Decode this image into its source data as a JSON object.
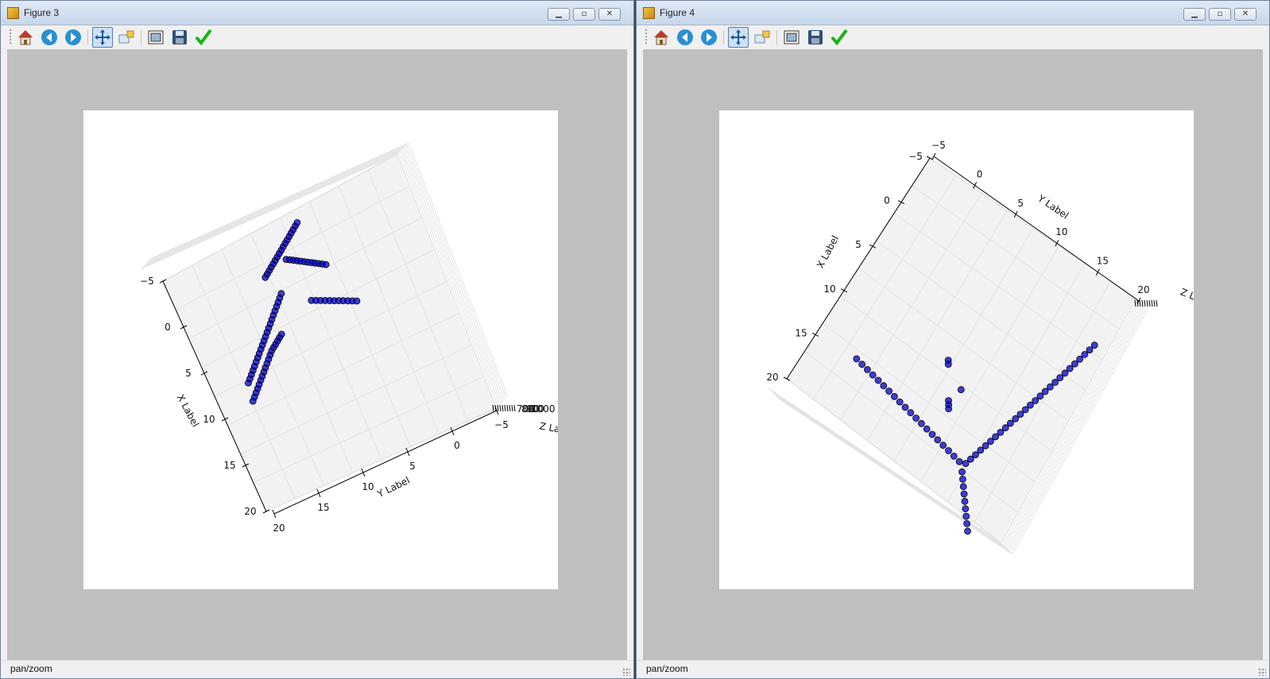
{
  "windows": [
    {
      "title": "Figure 3",
      "status": "pan/zoom",
      "toolbar": [
        "home-icon",
        "back-icon",
        "forward-icon",
        "pan-icon",
        "zoom-icon",
        "subplots-icon",
        "save-icon",
        "check-icon"
      ],
      "chart_data": {
        "type": "scatter",
        "title": "",
        "xlabel": "X Label",
        "ylabel": "Y Label",
        "zlabel": "Z Label",
        "xticks": [
          "−5",
          "0",
          "5",
          "10",
          "15",
          "20"
        ],
        "yticks": [
          "20",
          "15",
          "10",
          "5",
          "0",
          "−5"
        ],
        "zticks": [
          "700",
          "800",
          "900",
          "1000"
        ],
        "zticks_note": "",
        "marker_color": "#0000cc",
        "series": [
          {
            "points": [
              [
                -1.8,
                9.6
              ],
              [
                -1.5,
                9.3
              ],
              [
                -1.2,
                9.0
              ],
              [
                -0.9,
                8.7
              ],
              [
                -0.6,
                8.4
              ],
              [
                -0.3,
                8.1
              ],
              [
                0.0,
                7.8
              ],
              [
                0.3,
                7.5
              ],
              [
                0.6,
                7.2
              ],
              [
                0.9,
                6.9
              ],
              [
                1.2,
                6.6
              ],
              [
                1.5,
                6.3
              ],
              [
                1.8,
                6.0
              ],
              [
                2.1,
                5.8
              ],
              [
                2.4,
                5.6
              ],
              [
                2.7,
                5.4
              ],
              [
                3.0,
                5.2
              ],
              [
                3.3,
                5.0
              ],
              [
                -1.5,
                7.8
              ],
              [
                -1.2,
                7.5
              ],
              [
                -0.9,
                7.2
              ],
              [
                -0.6,
                6.9
              ],
              [
                -0.3,
                6.6
              ],
              [
                0.0,
                6.3
              ],
              [
                0.3,
                6.0
              ],
              [
                0.6,
                5.7
              ],
              [
                0.9,
                5.4
              ],
              [
                1.2,
                5.1
              ],
              [
                1.5,
                4.8
              ],
              [
                1.8,
                4.5
              ],
              [
                2.1,
                4.2
              ],
              [
                2.4,
                3.9
              ],
              [
                2.7,
                3.6
              ],
              [
                3.0,
                3.3
              ],
              [
                3.3,
                3.0
              ],
              [
                3.6,
                2.7
              ],
              [
                3.9,
                2.4
              ],
              [
                4.2,
                2.1
              ],
              [
                4.5,
                1.8
              ],
              [
                4.8,
                1.5
              ],
              [
                4.0,
                -0.6
              ],
              [
                4.3,
                -0.8
              ],
              [
                4.6,
                -1.0
              ],
              [
                4.9,
                -1.2
              ],
              [
                5.2,
                -1.4
              ],
              [
                5.5,
                -1.6
              ],
              [
                5.8,
                -1.8
              ],
              [
                6.1,
                -2.0
              ],
              [
                6.4,
                -2.2
              ],
              [
                6.7,
                -2.4
              ],
              [
                7.0,
                -2.6
              ],
              [
                7.3,
                -2.8
              ],
              [
                7.6,
                -3.0
              ],
              [
                7.9,
                -3.2
              ],
              [
                8.2,
                -3.4
              ],
              [
                8.5,
                -3.6
              ],
              [
                8.8,
                -3.8
              ],
              [
                6.5,
                -1.2
              ],
              [
                6.8,
                -1.0
              ],
              [
                7.1,
                -0.8
              ],
              [
                7.4,
                -0.6
              ],
              [
                7.7,
                -0.4
              ],
              [
                8.0,
                -0.2
              ],
              [
                8.3,
                0.0
              ],
              [
                8.6,
                0.2
              ],
              [
                8.9,
                0.4
              ],
              [
                9.2,
                0.6
              ],
              [
                9.5,
                0.8
              ],
              [
                9.8,
                1.0
              ],
              [
                7.2,
                3.4
              ],
              [
                7.6,
                3.6
              ],
              [
                8.0,
                3.8
              ],
              [
                8.4,
                4.0
              ],
              [
                8.8,
                4.2
              ],
              [
                9.2,
                4.4
              ],
              [
                9.6,
                4.6
              ],
              [
                10.0,
                4.8
              ],
              [
                10.4,
                5.0
              ],
              [
                10.8,
                5.2
              ],
              [
                11.2,
                5.4
              ]
            ]
          }
        ]
      }
    },
    {
      "title": "Figure 4",
      "status": "pan/zoom",
      "toolbar": [
        "home-icon",
        "back-icon",
        "forward-icon",
        "pan-icon",
        "zoom-icon",
        "subplots-icon",
        "save-icon",
        "check-icon"
      ],
      "chart_data": {
        "type": "scatter",
        "title": "",
        "xlabel": "X Label",
        "ylabel": "Y Label",
        "zlabel": "Z Label",
        "xticks": [
          "−5",
          "0",
          "5",
          "10",
          "15",
          "20"
        ],
        "yticks": [
          "−5",
          "0",
          "5",
          "10",
          "15",
          "20"
        ],
        "zticks_note": "",
        "marker_color": "#0000cc",
        "series": [
          {
            "points": [
              [
                14.5,
                -0.5
              ],
              [
                14.6,
                0.2
              ],
              [
                14.7,
                0.9
              ],
              [
                14.8,
                1.6
              ],
              [
                14.9,
                2.3
              ],
              [
                15.0,
                3.0
              ],
              [
                15.1,
                3.7
              ],
              [
                15.2,
                4.4
              ],
              [
                15.3,
                5.1
              ],
              [
                15.4,
                5.8
              ],
              [
                15.5,
                6.5
              ],
              [
                15.6,
                7.2
              ],
              [
                15.7,
                7.9
              ],
              [
                15.8,
                8.6
              ],
              [
                15.9,
                9.3
              ],
              [
                16.0,
                10.0
              ],
              [
                16.1,
                10.7
              ],
              [
                16.2,
                11.4
              ],
              [
                16.3,
                12.1
              ],
              [
                16.4,
                12.8
              ],
              [
                16.2,
                13.4
              ],
              [
                15.6,
                13.6
              ],
              [
                15.0,
                13.8
              ],
              [
                14.4,
                14.0
              ],
              [
                13.8,
                14.2
              ],
              [
                13.2,
                14.4
              ],
              [
                12.6,
                14.6
              ],
              [
                12.0,
                14.8
              ],
              [
                11.4,
                15.0
              ],
              [
                10.8,
                15.2
              ],
              [
                10.2,
                15.4
              ],
              [
                9.6,
                15.6
              ],
              [
                9.0,
                15.8
              ],
              [
                8.4,
                16.0
              ],
              [
                7.8,
                16.2
              ],
              [
                7.2,
                16.4
              ],
              [
                6.6,
                16.6
              ],
              [
                6.0,
                16.8
              ],
              [
                5.4,
                17.0
              ],
              [
                4.8,
                17.2
              ],
              [
                4.2,
                17.4
              ],
              [
                3.6,
                17.6
              ],
              [
                3.0,
                17.8
              ],
              [
                2.4,
                18.0
              ],
              [
                1.8,
                18.2
              ],
              [
                1.2,
                18.4
              ],
              [
                0.6,
                18.6
              ],
              [
                17.0,
                13.5
              ],
              [
                17.5,
                13.9
              ],
              [
                18.0,
                14.3
              ],
              [
                18.5,
                14.7
              ],
              [
                19.0,
                15.1
              ],
              [
                19.5,
                15.5
              ],
              [
                20.0,
                15.9
              ],
              [
                20.5,
                16.3
              ],
              [
                21.0,
                16.7
              ],
              [
                12.5,
                9.0
              ],
              [
                12.8,
                9.2
              ],
              [
                13.1,
                9.4
              ],
              [
                9.5,
                7.0
              ],
              [
                9.8,
                7.2
              ],
              [
                11.0,
                9.5
              ]
            ]
          }
        ]
      }
    }
  ]
}
